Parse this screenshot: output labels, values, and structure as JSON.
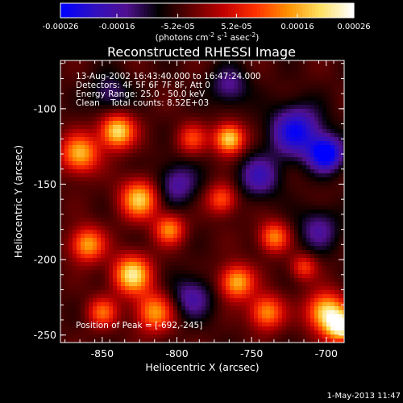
{
  "colorbar": {
    "ticks": [
      "-0.00026",
      "-0.00016",
      "-5.2e-05",
      "5.2e-05",
      "0.00016",
      "0.00026"
    ],
    "tick_values": [
      -0.00026,
      -0.00016,
      -5.2e-05,
      5.2e-05,
      0.00016,
      0.00026
    ],
    "range": [
      -0.00026,
      0.00026
    ],
    "unit_main": "(photons cm",
    "unit_sup1": "-2",
    "unit_mid": " s",
    "unit_sup2": "-1",
    "unit_end": " asec",
    "unit_sup3": "-2",
    "unit_close": ")",
    "colors": [
      "#0000ff",
      "#3010c0",
      "#501090",
      "#000000",
      "#600000",
      "#c00000",
      "#ff3000",
      "#ff9000",
      "#ffe060",
      "#ffffff"
    ]
  },
  "chart_data": {
    "type": "heatmap",
    "title": "Reconstructed RHESSI Image",
    "xlabel": "Heliocentric X (arcsec)",
    "ylabel": "Heliocentric Y (arcsec)",
    "xlim": [
      -878,
      -688
    ],
    "ylim": [
      -255,
      -68
    ],
    "x_ticks": [
      -850,
      -800,
      -750,
      -700
    ],
    "x_tick_labels": [
      "-850",
      "-800",
      "-750",
      "-700"
    ],
    "y_ticks": [
      -100,
      -150,
      -200,
      -250
    ],
    "y_tick_labels": [
      "-100",
      "-150",
      "-200",
      "-250"
    ],
    "peak": [
      -692,
      -245
    ],
    "sources": [
      {
        "x": -865,
        "y": -130,
        "v": 0.85,
        "s": 9
      },
      {
        "x": -840,
        "y": -115,
        "v": 1.0,
        "s": 8
      },
      {
        "x": -825,
        "y": -160,
        "v": 0.9,
        "s": 9
      },
      {
        "x": -860,
        "y": -190,
        "v": 0.8,
        "s": 8
      },
      {
        "x": -830,
        "y": -210,
        "v": 1.0,
        "s": 9
      },
      {
        "x": -805,
        "y": -180,
        "v": 0.7,
        "s": 7
      },
      {
        "x": -815,
        "y": -235,
        "v": 0.75,
        "s": 9
      },
      {
        "x": -850,
        "y": -235,
        "v": 0.6,
        "s": 7
      },
      {
        "x": -790,
        "y": -120,
        "v": 0.5,
        "s": 7
      },
      {
        "x": -765,
        "y": -120,
        "v": 1.0,
        "s": 7
      },
      {
        "x": -770,
        "y": -160,
        "v": 0.6,
        "s": 7
      },
      {
        "x": -760,
        "y": -215,
        "v": 0.85,
        "s": 8
      },
      {
        "x": -735,
        "y": -185,
        "v": 0.7,
        "s": 7
      },
      {
        "x": -740,
        "y": -235,
        "v": 0.75,
        "s": 8
      },
      {
        "x": -715,
        "y": -205,
        "v": 0.5,
        "s": 6
      },
      {
        "x": -700,
        "y": -235,
        "v": 1.0,
        "s": 9
      },
      {
        "x": -690,
        "y": -245,
        "v": 1.0,
        "s": 7
      },
      {
        "x": -800,
        "y": -150,
        "v": -0.45,
        "s": 10
      },
      {
        "x": -720,
        "y": -115,
        "v": -0.75,
        "s": 12
      },
      {
        "x": -700,
        "y": -130,
        "v": -0.9,
        "s": 8
      },
      {
        "x": -745,
        "y": -145,
        "v": -0.5,
        "s": 10
      },
      {
        "x": -790,
        "y": -225,
        "v": -0.45,
        "s": 10
      },
      {
        "x": -845,
        "y": -90,
        "v": -0.35,
        "s": 9
      },
      {
        "x": -705,
        "y": -180,
        "v": -0.4,
        "s": 10
      },
      {
        "x": -765,
        "y": -85,
        "v": -0.4,
        "s": 9
      }
    ]
  },
  "info": {
    "line1": "13-Aug-2002 16:43:40.000 to 16:47:24.000",
    "line2": "Detectors: 4F 5F 6F 7F 8F, Att 0",
    "line3": "Energy Range: 25.0 - 50.0 keV",
    "line4": "Clean    Total counts: 8.52E+03",
    "peak_label": "Position of Peak = [-692,-245]"
  },
  "footer": {
    "date": "1-May-2013 11:47"
  }
}
